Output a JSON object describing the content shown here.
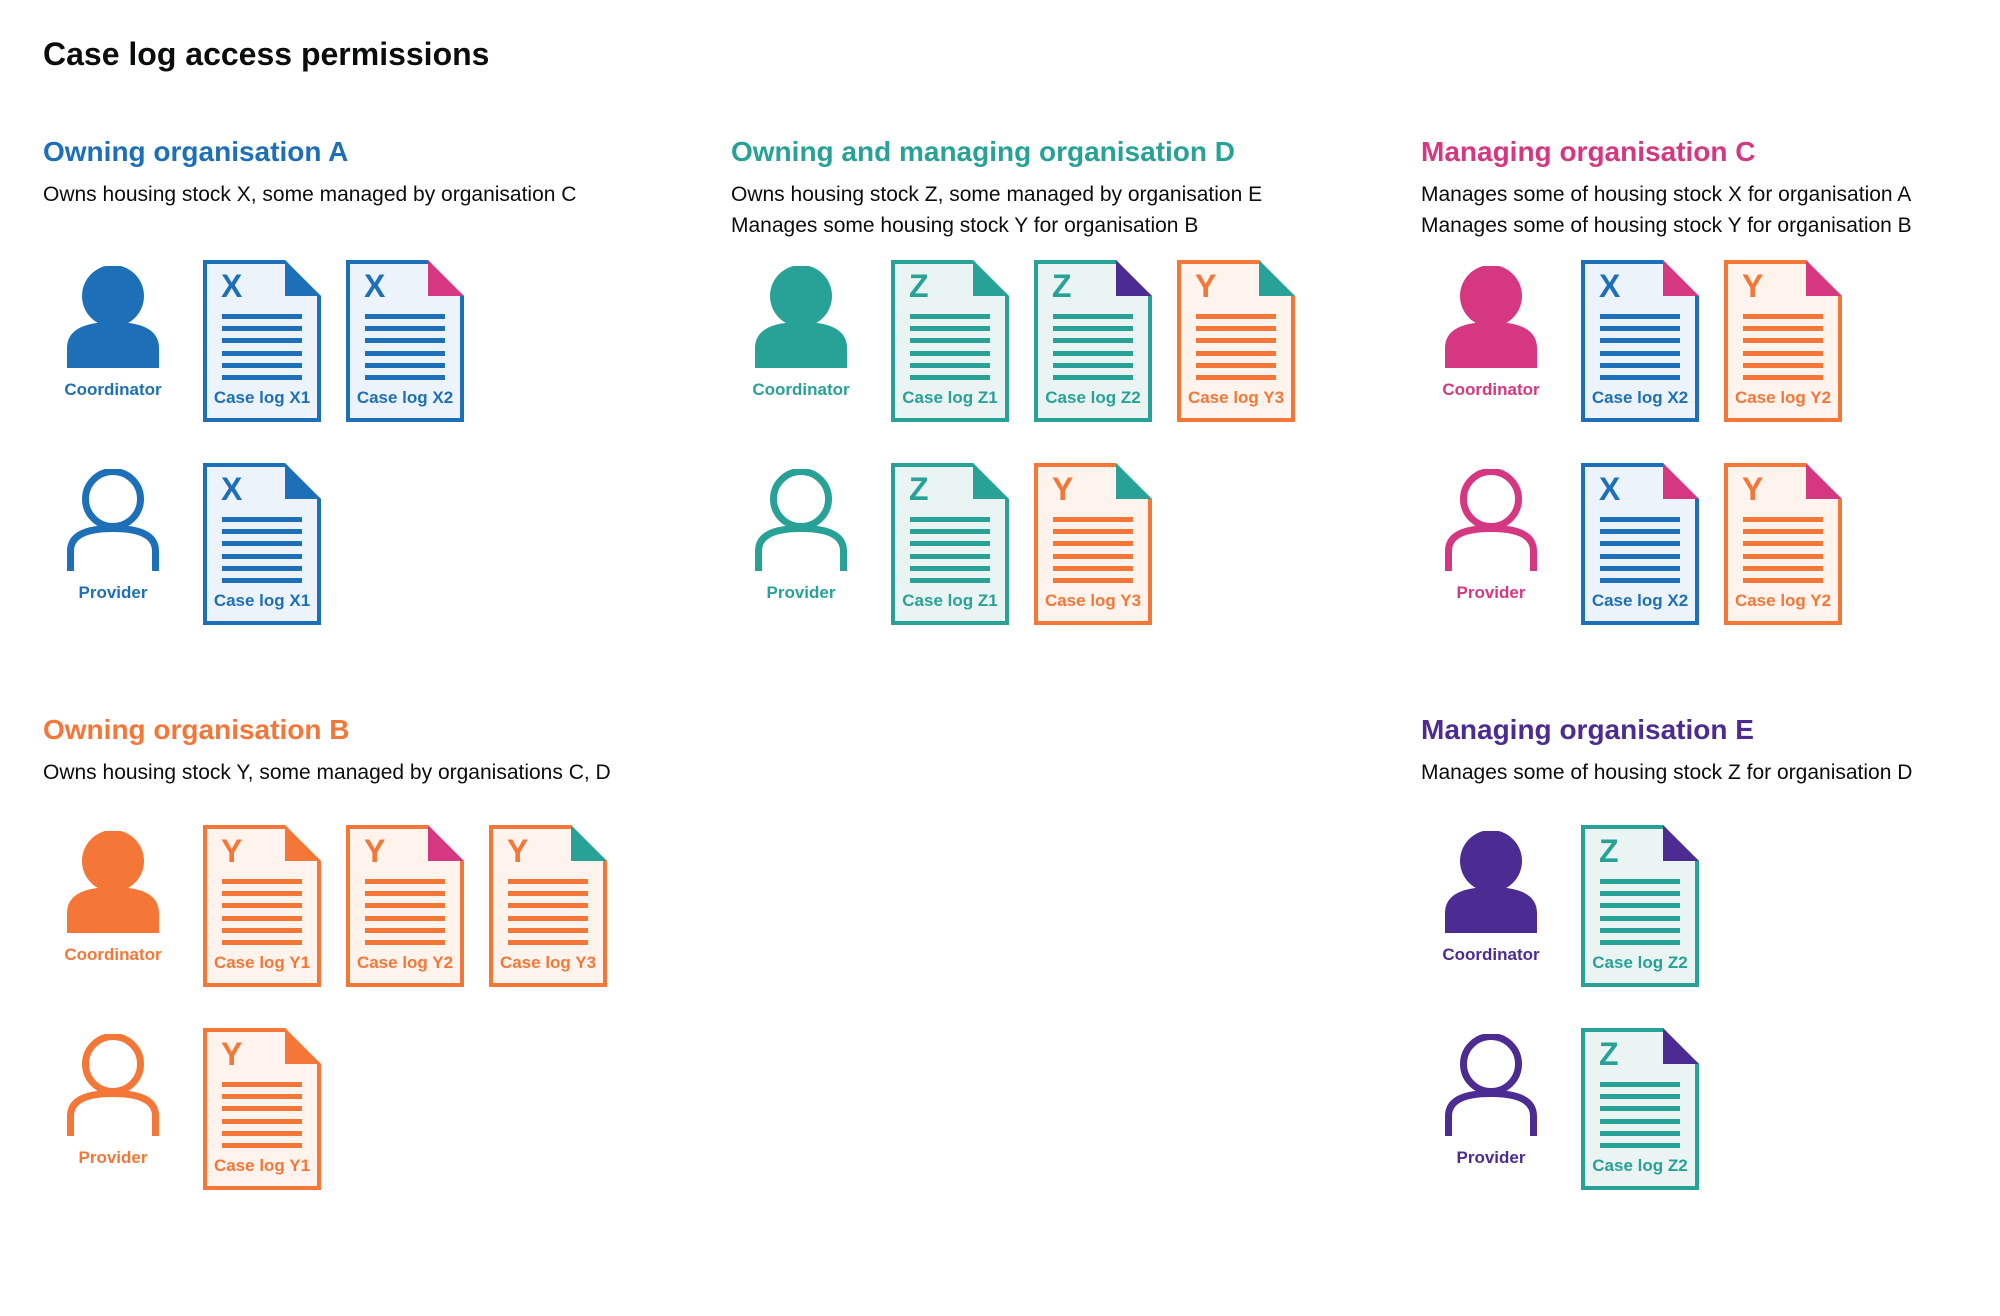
{
  "title": "Case log access permissions",
  "colors": {
    "blue": "#1d70b8",
    "teal": "#28a197",
    "pink": "#d53880",
    "orange": "#f47738",
    "purple": "#4c2c92",
    "text": "#0b0c0c"
  },
  "tints": {
    "blue": "#edf3fa",
    "teal": "#eaf5f3",
    "orange": "#fef4ed"
  },
  "sections": [
    {
      "slot": "r1c1",
      "heading": "Owning organisation A",
      "color": "blue",
      "description": [
        "Owns housing stock X, some managed by organisation C"
      ],
      "rows": [
        {
          "role": "Coordinator",
          "icon": "filled",
          "docs": [
            {
              "letter": "X",
              "label": "Case log X1",
              "doc_color": "blue",
              "fold_color": "blue"
            },
            {
              "letter": "X",
              "label": "Case log X2",
              "doc_color": "blue",
              "fold_color": "pink"
            }
          ]
        },
        {
          "role": "Provider",
          "icon": "outline",
          "docs": [
            {
              "letter": "X",
              "label": "Case log X1",
              "doc_color": "blue",
              "fold_color": "blue"
            }
          ]
        }
      ]
    },
    {
      "slot": "r1c2",
      "heading": "Owning and managing organisation D",
      "color": "teal",
      "description": [
        "Owns housing stock Z, some managed by organisation E",
        "Manages some housing stock Y for organisation B"
      ],
      "rows": [
        {
          "role": "Coordinator",
          "icon": "filled",
          "docs": [
            {
              "letter": "Z",
              "label": "Case log Z1",
              "doc_color": "teal",
              "fold_color": "teal"
            },
            {
              "letter": "Z",
              "label": "Case log Z2",
              "doc_color": "teal",
              "fold_color": "purple"
            },
            {
              "letter": "Y",
              "label": "Case log Y3",
              "doc_color": "orange",
              "fold_color": "teal"
            }
          ]
        },
        {
          "role": "Provider",
          "icon": "outline",
          "docs": [
            {
              "letter": "Z",
              "label": "Case log Z1",
              "doc_color": "teal",
              "fold_color": "teal"
            },
            {
              "letter": "Y",
              "label": "Case log Y3",
              "doc_color": "orange",
              "fold_color": "teal"
            }
          ]
        }
      ]
    },
    {
      "slot": "r1c3",
      "heading": "Managing organisation C",
      "color": "pink",
      "description": [
        "Manages some of housing stock X for organisation A",
        "Manages some of housing stock Y for organisation B"
      ],
      "rows": [
        {
          "role": "Coordinator",
          "icon": "filled",
          "docs": [
            {
              "letter": "X",
              "label": "Case log X2",
              "doc_color": "blue",
              "fold_color": "pink"
            },
            {
              "letter": "Y",
              "label": "Case log Y2",
              "doc_color": "orange",
              "fold_color": "pink"
            }
          ]
        },
        {
          "role": "Provider",
          "icon": "outline",
          "docs": [
            {
              "letter": "X",
              "label": "Case log X2",
              "doc_color": "blue",
              "fold_color": "pink"
            },
            {
              "letter": "Y",
              "label": "Case log Y2",
              "doc_color": "orange",
              "fold_color": "pink"
            }
          ]
        }
      ]
    },
    {
      "slot": "r2c1",
      "heading": "Owning organisation B",
      "color": "orange",
      "description": [
        "Owns housing stock Y, some managed by organisations C, D"
      ],
      "rows": [
        {
          "role": "Coordinator",
          "icon": "filled",
          "docs": [
            {
              "letter": "Y",
              "label": "Case log Y1",
              "doc_color": "orange",
              "fold_color": "orange"
            },
            {
              "letter": "Y",
              "label": "Case log Y2",
              "doc_color": "orange",
              "fold_color": "pink"
            },
            {
              "letter": "Y",
              "label": "Case log Y3",
              "doc_color": "orange",
              "fold_color": "teal"
            }
          ]
        },
        {
          "role": "Provider",
          "icon": "outline",
          "docs": [
            {
              "letter": "Y",
              "label": "Case log Y1",
              "doc_color": "orange",
              "fold_color": "orange"
            }
          ]
        }
      ]
    },
    {
      "slot": "r2c3",
      "heading": "Managing organisation E",
      "color": "purple",
      "description": [
        "Manages some of housing stock Z for organisation D"
      ],
      "rows": [
        {
          "role": "Coordinator",
          "icon": "filled",
          "docs": [
            {
              "letter": "Z",
              "label": "Case log Z2",
              "doc_color": "teal",
              "fold_color": "purple"
            }
          ]
        },
        {
          "role": "Provider",
          "icon": "outline",
          "docs": [
            {
              "letter": "Z",
              "label": "Case log Z2",
              "doc_color": "teal",
              "fold_color": "purple"
            }
          ]
        }
      ]
    }
  ]
}
